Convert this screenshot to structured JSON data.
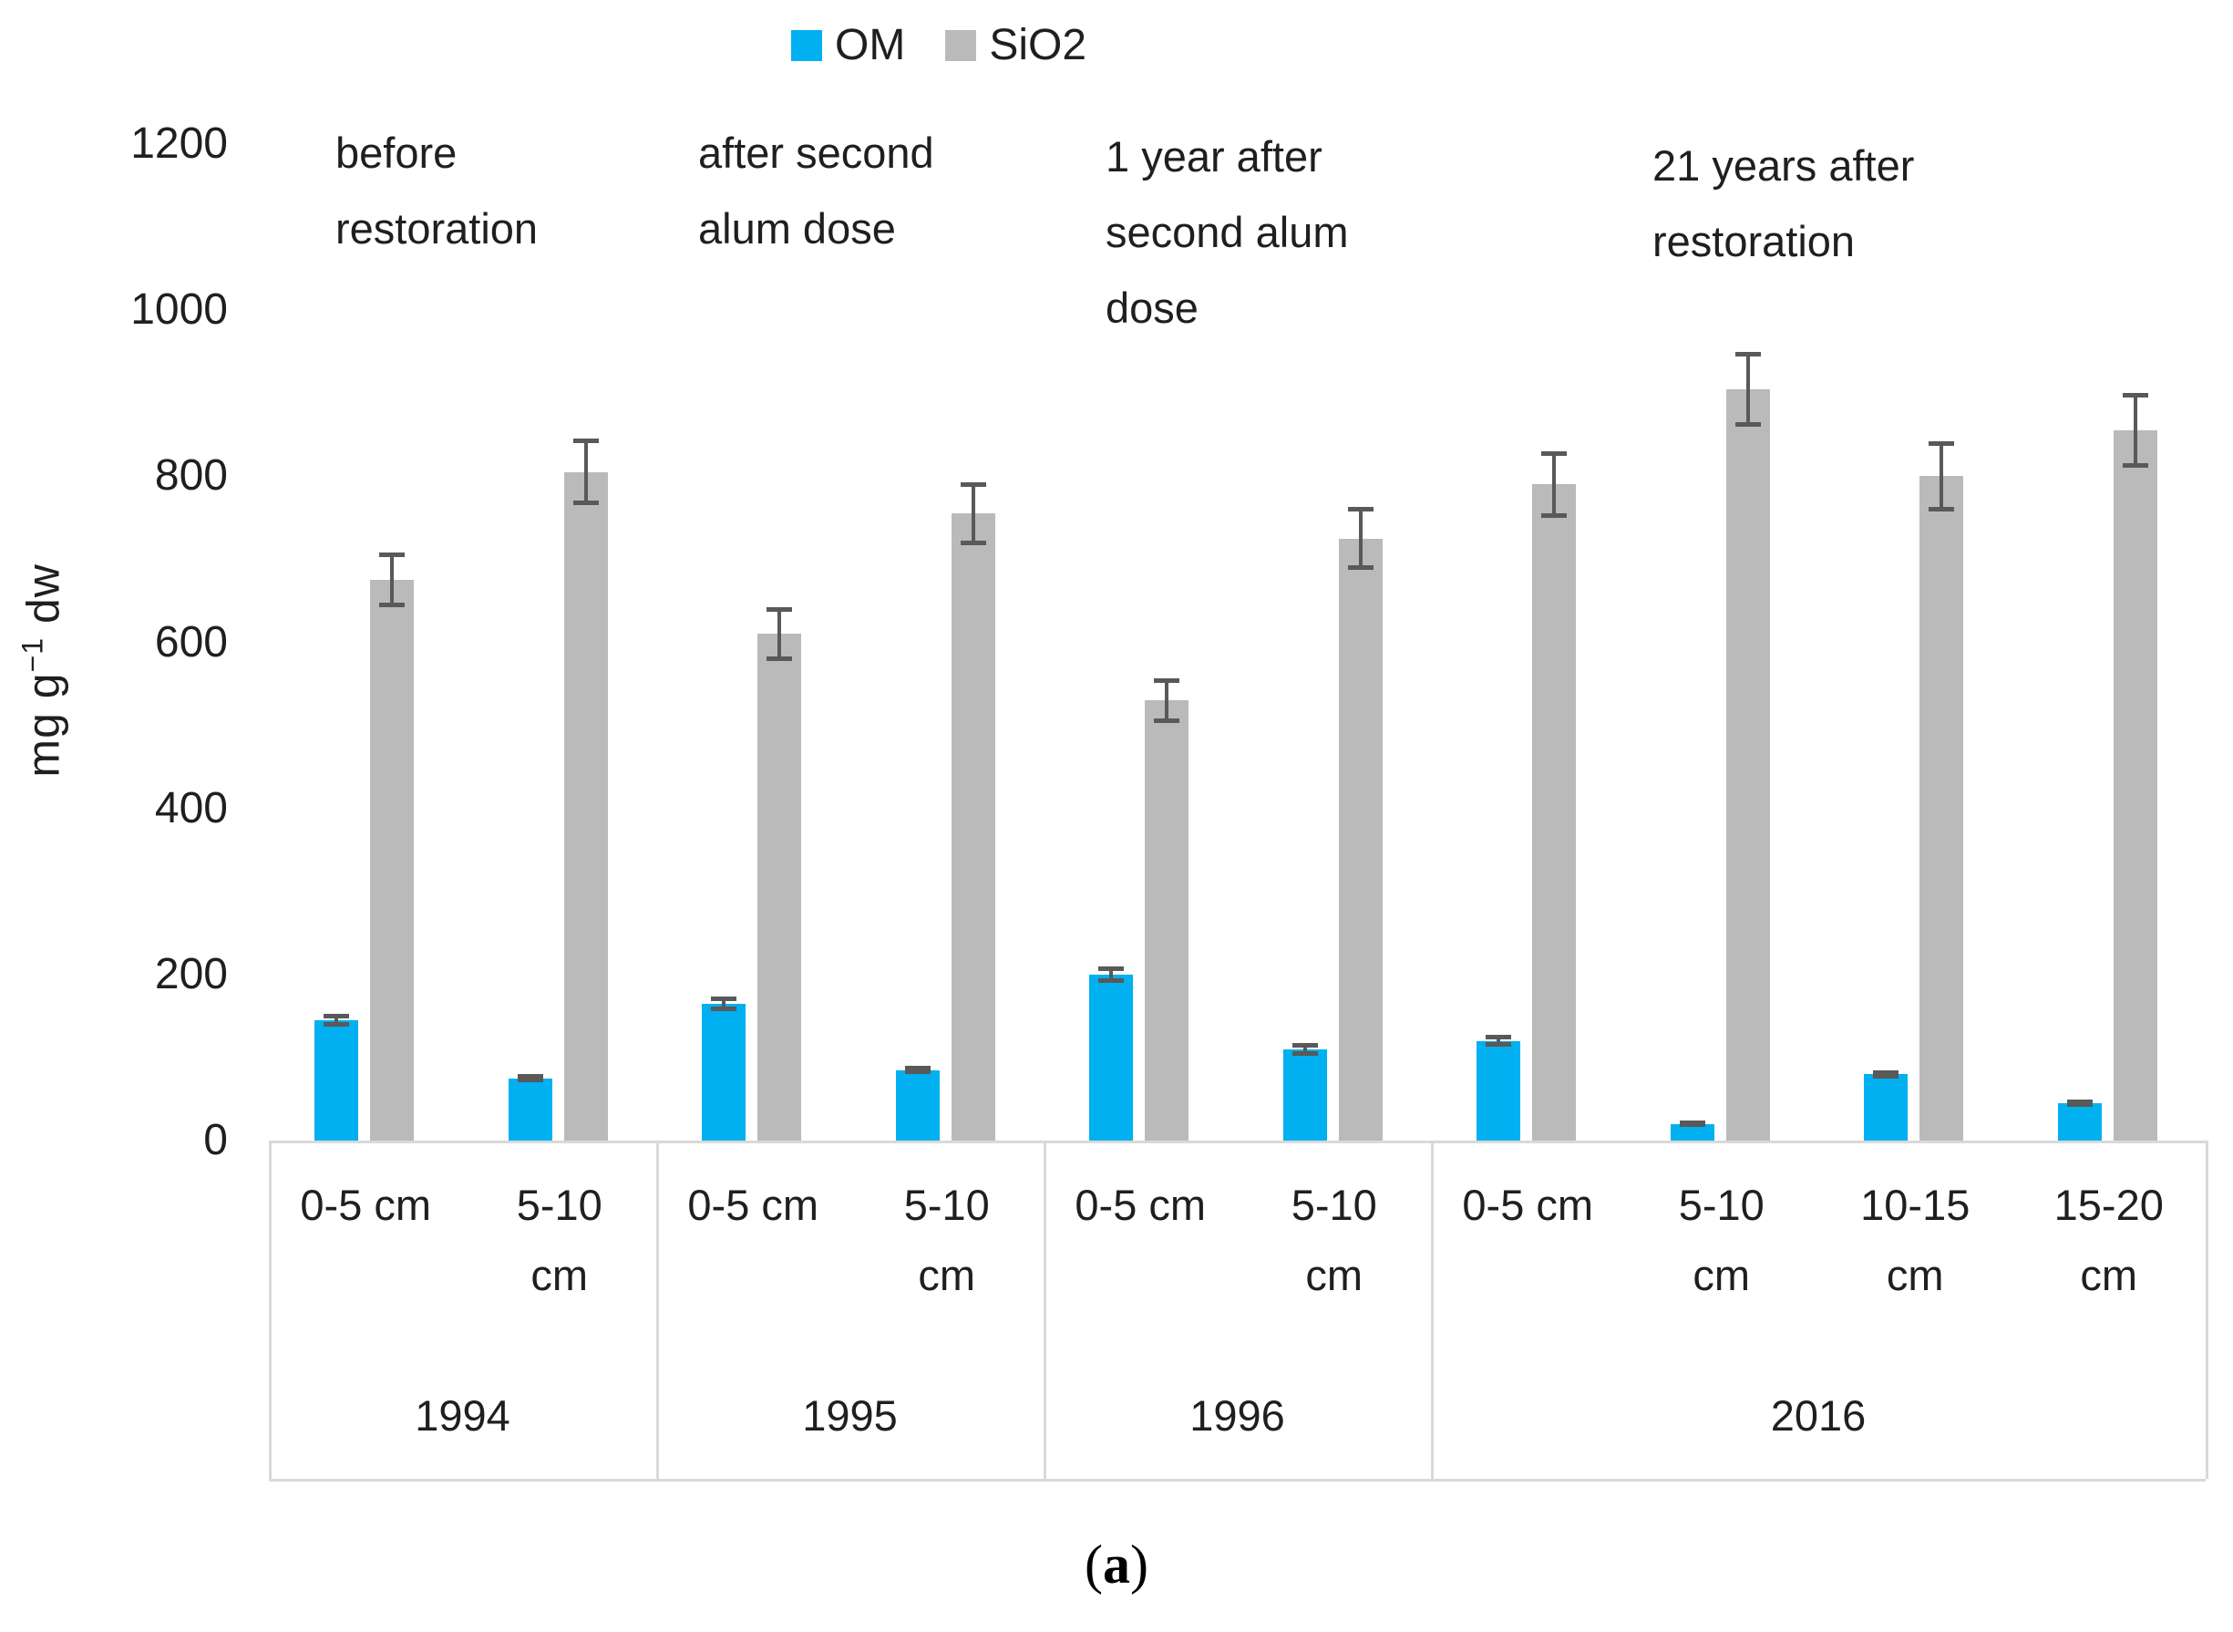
{
  "legend": {
    "om": "OM",
    "sio2": "SiO2"
  },
  "axis": {
    "y_label_pre": "mg g",
    "y_label_sup": "−1",
    "y_label_post": " dw"
  },
  "annotations": {
    "group1": "before\nrestoration",
    "group2": "after second\nalum dose",
    "group3": "1 year after\nsecond alum\ndose",
    "group4": "21 years after\nrestoration"
  },
  "caption": {
    "open": "(",
    "letter": "a",
    "close": ")"
  },
  "colors": {
    "om": "#00b0f0",
    "sio2": "#bababa",
    "error": "#595959",
    "axis_line": "#d9d9d9"
  },
  "chart_data": {
    "type": "bar",
    "title": "",
    "ylabel": "mg g-1 dw",
    "ylim": [
      0,
      1200
    ],
    "yticks": [
      0,
      200,
      400,
      600,
      800,
      1000,
      1200
    ],
    "grid": false,
    "legend_position": "top-center",
    "groups": [
      {
        "year": "1994",
        "depths": [
          "0-5 cm",
          "5-10\ncm"
        ]
      },
      {
        "year": "1995",
        "depths": [
          "0-5 cm",
          "5-10\ncm"
        ]
      },
      {
        "year": "1996",
        "depths": [
          "0-5 cm",
          "5-10\ncm"
        ]
      },
      {
        "year": "2016",
        "depths": [
          "0-5 cm",
          "5-10\ncm",
          "10-15\ncm",
          "15-20\ncm"
        ]
      }
    ],
    "series": [
      {
        "name": "OM",
        "color": "#00b0f0",
        "values": [
          145,
          75,
          165,
          85,
          200,
          110,
          120,
          20,
          80,
          45
        ],
        "errors": [
          8,
          5,
          9,
          5,
          10,
          8,
          7,
          4,
          5,
          4
        ]
      },
      {
        "name": "SiO2",
        "color": "#bababa",
        "values": [
          675,
          805,
          610,
          755,
          530,
          725,
          790,
          905,
          800,
          855
        ],
        "errors": [
          33,
          40,
          32,
          38,
          27,
          38,
          40,
          45,
          42,
          45
        ]
      }
    ]
  }
}
